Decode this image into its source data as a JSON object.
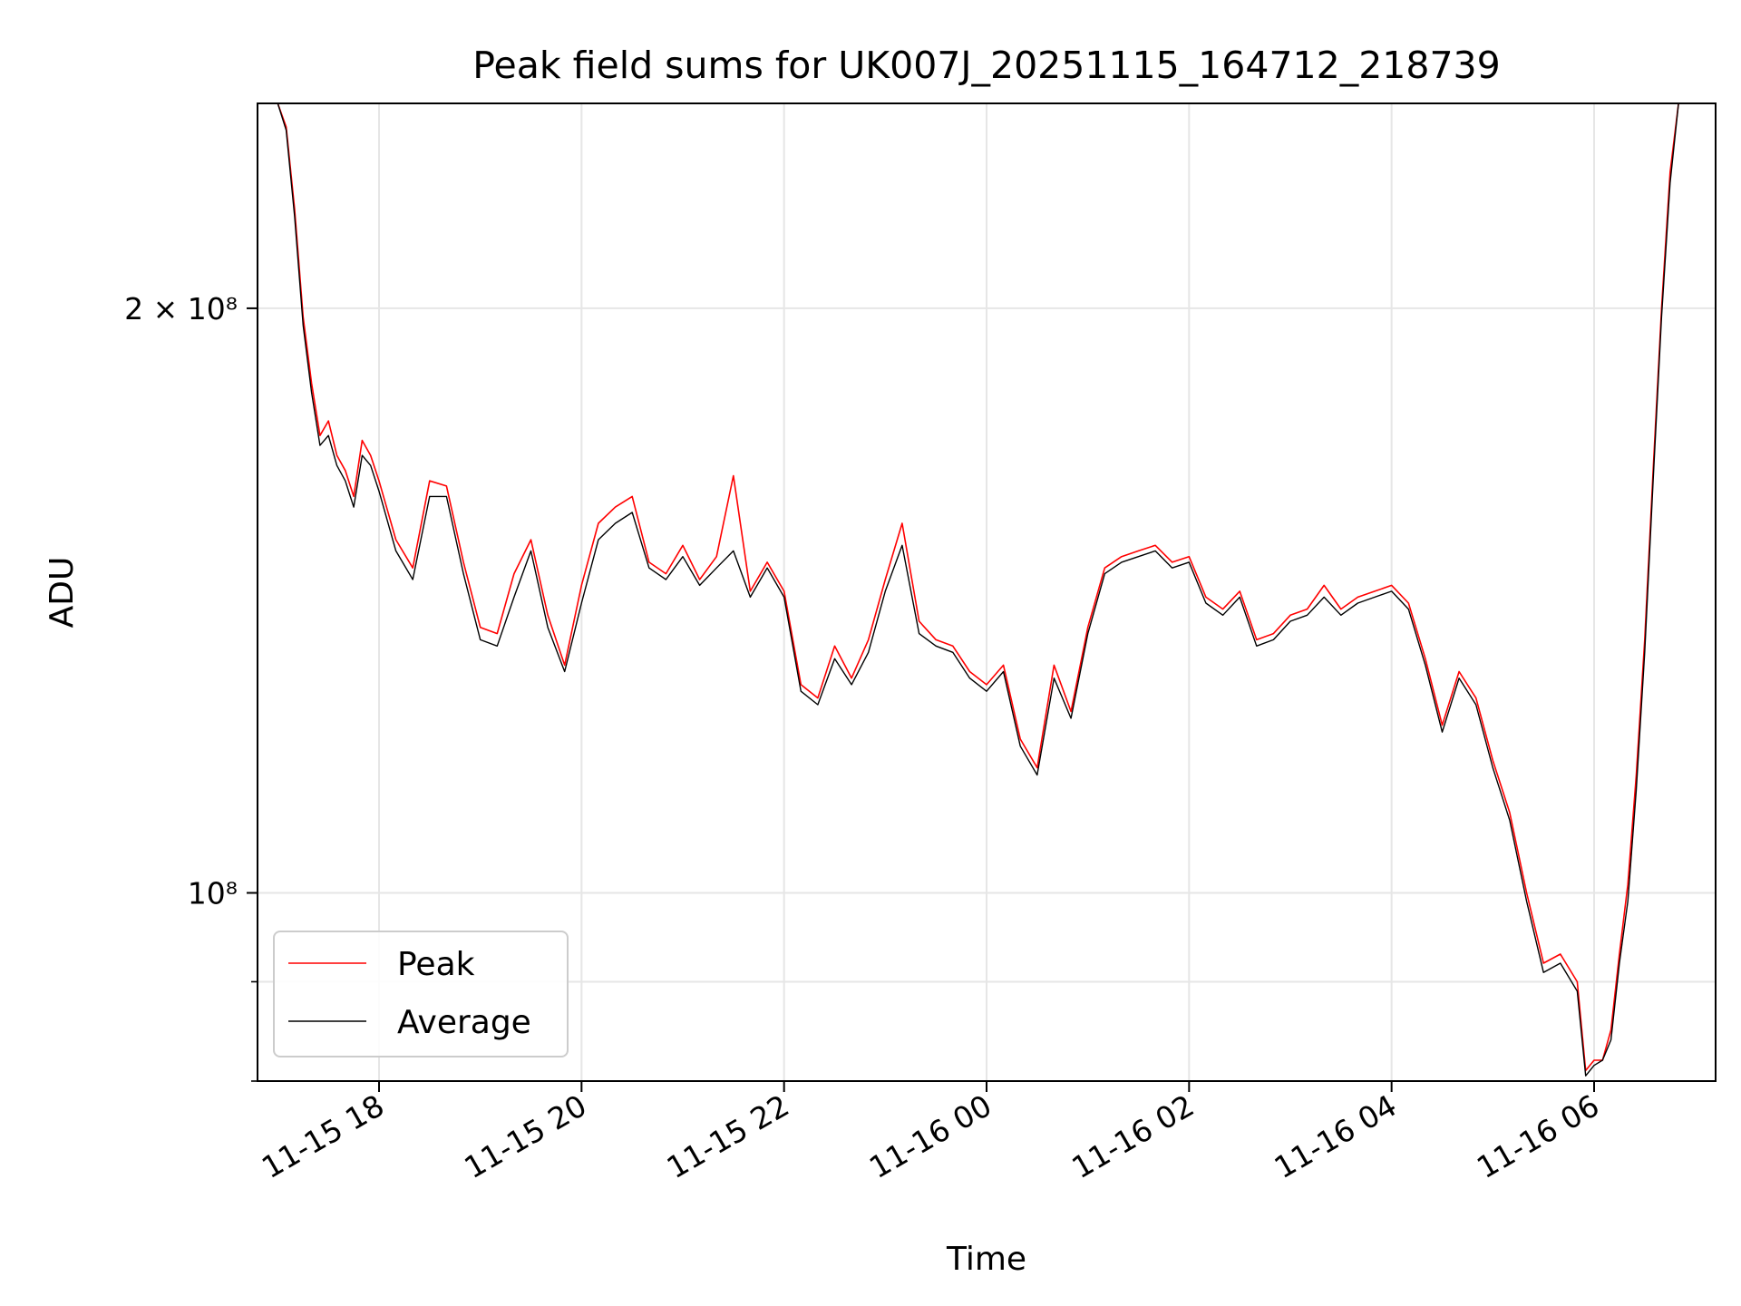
{
  "chart_data": {
    "type": "line",
    "title": "Peak field sums for UK007J_20251115_164712_218739",
    "xlabel": "Time",
    "ylabel": "ADU",
    "xlim": [
      "2025-11-15 16:48",
      "2025-11-16 07:12"
    ],
    "ylim": [
      80000000,
      255000000
    ],
    "yscale": "log",
    "grid": true,
    "legend": "lower left",
    "x_ticks": [
      "11-15 18",
      "11-15 20",
      "11-15 22",
      "11-16 00",
      "11-16 02",
      "11-16 04",
      "11-16 06"
    ],
    "y_ticks": [
      {
        "value": 200000000,
        "label": "2 × 10⁸"
      },
      {
        "value": 100000000,
        "label": "10⁸"
      }
    ],
    "series": [
      {
        "name": "Peak",
        "color": "#ff0000",
        "x": [
          "2025-11-15 16:55",
          "2025-11-15 17:00",
          "2025-11-15 17:05",
          "2025-11-15 17:10",
          "2025-11-15 17:15",
          "2025-11-15 17:20",
          "2025-11-15 17:25",
          "2025-11-15 17:30",
          "2025-11-15 17:35",
          "2025-11-15 17:40",
          "2025-11-15 17:45",
          "2025-11-15 17:50",
          "2025-11-15 17:55",
          "2025-11-15 18:00",
          "2025-11-15 18:10",
          "2025-11-15 18:20",
          "2025-11-15 18:30",
          "2025-11-15 18:40",
          "2025-11-15 18:50",
          "2025-11-15 19:00",
          "2025-11-15 19:10",
          "2025-11-15 19:20",
          "2025-11-15 19:30",
          "2025-11-15 19:40",
          "2025-11-15 19:50",
          "2025-11-15 20:00",
          "2025-11-15 20:10",
          "2025-11-15 20:20",
          "2025-11-15 20:30",
          "2025-11-15 20:40",
          "2025-11-15 20:50",
          "2025-11-15 21:00",
          "2025-11-15 21:10",
          "2025-11-15 21:20",
          "2025-11-15 21:30",
          "2025-11-15 21:40",
          "2025-11-15 21:50",
          "2025-11-15 22:00",
          "2025-11-15 22:10",
          "2025-11-15 22:20",
          "2025-11-15 22:30",
          "2025-11-15 22:40",
          "2025-11-15 22:50",
          "2025-11-15 23:00",
          "2025-11-15 23:10",
          "2025-11-15 23:20",
          "2025-11-15 23:30",
          "2025-11-15 23:40",
          "2025-11-15 23:50",
          "2025-11-16 00:00",
          "2025-11-16 00:10",
          "2025-11-16 00:20",
          "2025-11-16 00:30",
          "2025-11-16 00:40",
          "2025-11-16 00:50",
          "2025-11-16 01:00",
          "2025-11-16 01:10",
          "2025-11-16 01:20",
          "2025-11-16 01:30",
          "2025-11-16 01:40",
          "2025-11-16 01:50",
          "2025-11-16 02:00",
          "2025-11-16 02:10",
          "2025-11-16 02:20",
          "2025-11-16 02:30",
          "2025-11-16 02:40",
          "2025-11-16 02:50",
          "2025-11-16 03:00",
          "2025-11-16 03:10",
          "2025-11-16 03:20",
          "2025-11-16 03:30",
          "2025-11-16 03:40",
          "2025-11-16 03:50",
          "2025-11-16 04:00",
          "2025-11-16 04:10",
          "2025-11-16 04:20",
          "2025-11-16 04:30",
          "2025-11-16 04:40",
          "2025-11-16 04:50",
          "2025-11-16 05:00",
          "2025-11-16 05:10",
          "2025-11-16 05:20",
          "2025-11-16 05:30",
          "2025-11-16 05:40",
          "2025-11-16 05:50",
          "2025-11-16 05:55",
          "2025-11-16 06:00",
          "2025-11-16 06:05",
          "2025-11-16 06:10",
          "2025-11-16 06:15",
          "2025-11-16 06:20",
          "2025-11-16 06:25",
          "2025-11-16 06:30",
          "2025-11-16 06:35",
          "2025-11-16 06:40",
          "2025-11-16 06:45",
          "2025-11-16 06:50",
          "2025-11-16 06:55",
          "2025-11-16 07:00"
        ],
        "values": [
          255000000,
          255000000,
          248000000,
          225000000,
          198000000,
          183000000,
          172000000,
          175000000,
          168000000,
          165000000,
          160000000,
          171000000,
          168000000,
          163000000,
          152000000,
          147000000,
          163000000,
          162000000,
          148000000,
          137000000,
          136000000,
          146000000,
          152000000,
          139000000,
          131000000,
          144000000,
          155000000,
          158000000,
          160000000,
          148000000,
          146000000,
          151000000,
          145000000,
          149000000,
          164000000,
          143000000,
          148000000,
          143000000,
          128000000,
          126000000,
          134000000,
          129000000,
          135000000,
          145000000,
          155000000,
          138000000,
          135000000,
          134000000,
          130000000,
          128000000,
          131000000,
          120000000,
          116000000,
          131000000,
          124000000,
          137000000,
          147000000,
          149000000,
          150000000,
          151000000,
          148000000,
          149000000,
          142000000,
          140000000,
          143000000,
          135000000,
          136000000,
          139000000,
          140000000,
          144000000,
          140000000,
          142000000,
          143000000,
          144000000,
          141000000,
          132000000,
          122000000,
          130000000,
          126000000,
          117000000,
          110000000,
          100000000,
          92000000,
          93000000,
          90000000,
          81000000,
          82000000,
          82000000,
          85000000,
          93000000,
          101000000,
          115000000,
          135000000,
          165000000,
          200000000,
          235000000,
          255000000,
          255000000,
          255000000
        ]
      },
      {
        "name": "Average",
        "color": "#000000",
        "x": [
          "2025-11-15 16:55",
          "2025-11-15 17:00",
          "2025-11-15 17:05",
          "2025-11-15 17:10",
          "2025-11-15 17:15",
          "2025-11-15 17:20",
          "2025-11-15 17:25",
          "2025-11-15 17:30",
          "2025-11-15 17:35",
          "2025-11-15 17:40",
          "2025-11-15 17:45",
          "2025-11-15 17:50",
          "2025-11-15 17:55",
          "2025-11-15 18:00",
          "2025-11-15 18:10",
          "2025-11-15 18:20",
          "2025-11-15 18:30",
          "2025-11-15 18:40",
          "2025-11-15 18:50",
          "2025-11-15 19:00",
          "2025-11-15 19:10",
          "2025-11-15 19:20",
          "2025-11-15 19:30",
          "2025-11-15 19:40",
          "2025-11-15 19:50",
          "2025-11-15 20:00",
          "2025-11-15 20:10",
          "2025-11-15 20:20",
          "2025-11-15 20:30",
          "2025-11-15 20:40",
          "2025-11-15 20:50",
          "2025-11-15 21:00",
          "2025-11-15 21:10",
          "2025-11-15 21:20",
          "2025-11-15 21:30",
          "2025-11-15 21:40",
          "2025-11-15 21:50",
          "2025-11-15 22:00",
          "2025-11-15 22:10",
          "2025-11-15 22:20",
          "2025-11-15 22:30",
          "2025-11-15 22:40",
          "2025-11-15 22:50",
          "2025-11-15 23:00",
          "2025-11-15 23:10",
          "2025-11-15 23:20",
          "2025-11-15 23:30",
          "2025-11-15 23:40",
          "2025-11-15 23:50",
          "2025-11-16 00:00",
          "2025-11-16 00:10",
          "2025-11-16 00:20",
          "2025-11-16 00:30",
          "2025-11-16 00:40",
          "2025-11-16 00:50",
          "2025-11-16 01:00",
          "2025-11-16 01:10",
          "2025-11-16 01:20",
          "2025-11-16 01:30",
          "2025-11-16 01:40",
          "2025-11-16 01:50",
          "2025-11-16 02:00",
          "2025-11-16 02:10",
          "2025-11-16 02:20",
          "2025-11-16 02:30",
          "2025-11-16 02:40",
          "2025-11-16 02:50",
          "2025-11-16 03:00",
          "2025-11-16 03:10",
          "2025-11-16 03:20",
          "2025-11-16 03:30",
          "2025-11-16 03:40",
          "2025-11-16 03:50",
          "2025-11-16 04:00",
          "2025-11-16 04:10",
          "2025-11-16 04:20",
          "2025-11-16 04:30",
          "2025-11-16 04:40",
          "2025-11-16 04:50",
          "2025-11-16 05:00",
          "2025-11-16 05:10",
          "2025-11-16 05:20",
          "2025-11-16 05:30",
          "2025-11-16 05:40",
          "2025-11-16 05:50",
          "2025-11-16 05:55",
          "2025-11-16 06:00",
          "2025-11-16 06:05",
          "2025-11-16 06:10",
          "2025-11-16 06:15",
          "2025-11-16 06:20",
          "2025-11-16 06:25",
          "2025-11-16 06:30",
          "2025-11-16 06:35",
          "2025-11-16 06:40",
          "2025-11-16 06:45",
          "2025-11-16 06:50",
          "2025-11-16 06:55",
          "2025-11-16 07:00"
        ],
        "values": [
          255000000,
          255000000,
          247000000,
          223000000,
          196000000,
          181000000,
          170000000,
          172000000,
          166000000,
          163000000,
          158000000,
          168000000,
          166000000,
          161000000,
          150000000,
          145000000,
          160000000,
          160000000,
          146000000,
          135000000,
          134000000,
          142000000,
          150000000,
          137000000,
          130000000,
          141000000,
          152000000,
          155000000,
          157000000,
          147000000,
          145000000,
          149000000,
          144000000,
          147000000,
          150000000,
          142000000,
          147000000,
          142000000,
          127000000,
          125000000,
          132000000,
          128000000,
          133000000,
          143000000,
          151000000,
          136000000,
          134000000,
          133000000,
          129000000,
          127000000,
          130000000,
          119000000,
          115000000,
          129000000,
          123000000,
          136000000,
          146000000,
          148000000,
          149000000,
          150000000,
          147000000,
          148000000,
          141000000,
          139000000,
          142000000,
          134000000,
          135000000,
          138000000,
          139000000,
          142000000,
          139000000,
          141000000,
          142000000,
          143000000,
          140000000,
          131000000,
          121000000,
          129000000,
          125000000,
          116000000,
          109000000,
          99000000,
          91000000,
          92000000,
          89000000,
          80500000,
          81500000,
          82000000,
          84000000,
          92000000,
          99000000,
          113000000,
          133000000,
          163000000,
          198000000,
          232000000,
          255000000,
          255000000,
          255000000
        ]
      }
    ]
  }
}
